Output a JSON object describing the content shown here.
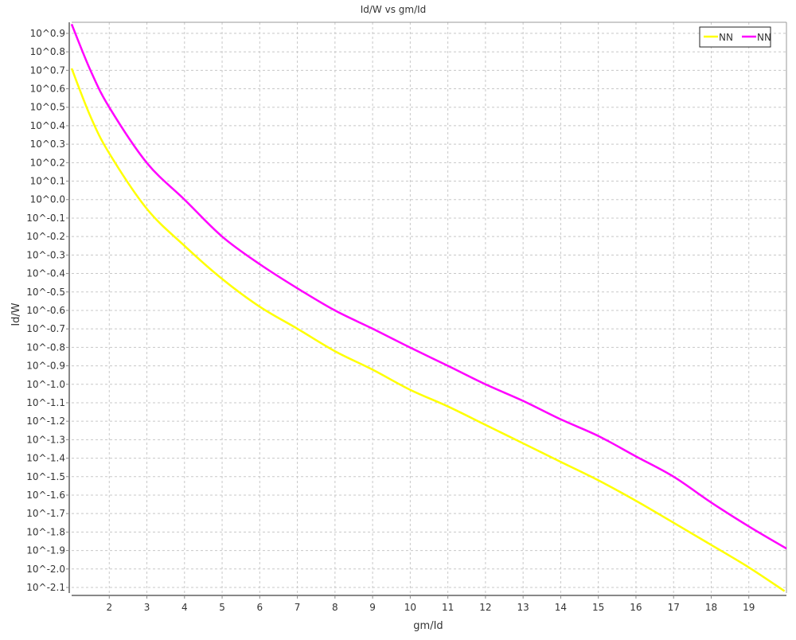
{
  "chart_data": {
    "type": "line",
    "title": "Id/W vs gm/Id",
    "xlabel": "gm/Id",
    "ylabel": "Id/W",
    "xlim": [
      1,
      20
    ],
    "ylim": [
      0.00741,
      9.12
    ],
    "yscale": "log",
    "grid": true,
    "legend_position": "top-right",
    "x_ticks": [
      2,
      3,
      4,
      5,
      6,
      7,
      8,
      9,
      10,
      11,
      12,
      13,
      14,
      15,
      16,
      17,
      18,
      19
    ],
    "y_tick_exponents": [
      0.9,
      0.8,
      0.7,
      0.6,
      0.5,
      0.4,
      0.3,
      0.2,
      0.1,
      0.0,
      -0.1,
      -0.2,
      -0.3,
      -0.4,
      -0.5,
      -0.6,
      -0.7,
      -0.8,
      -0.9,
      -1.0,
      -1.1,
      -1.2,
      -1.3,
      -1.4,
      -1.5,
      -1.6,
      -1.7,
      -1.8,
      -1.9,
      -2.0,
      -2.1
    ],
    "y_tick_labels": [
      "10^0.9",
      "10^0.8",
      "10^0.7",
      "10^0.6",
      "10^0.5",
      "10^0.4",
      "10^0.3",
      "10^0.2",
      "10^0.1",
      "10^0.0",
      "10^-0.1",
      "10^-0.2",
      "10^-0.3",
      "10^-0.4",
      "10^-0.5",
      "10^-0.6",
      "10^-0.7",
      "10^-0.8",
      "10^-0.9",
      "10^-1.0",
      "10^-1.1",
      "10^-1.2",
      "10^-1.3",
      "10^-1.4",
      "10^-1.5",
      "10^-1.6",
      "10^-1.7",
      "10^-1.8",
      "10^-1.9",
      "10^-2.0",
      "10^-2.1"
    ],
    "series": [
      {
        "name": "NN",
        "color": "#ffff00",
        "x": [
          1,
          1.5,
          2,
          3,
          4,
          5,
          6,
          7,
          8,
          9,
          10,
          11,
          12,
          13,
          14,
          15,
          16,
          17,
          18,
          19,
          19.95
        ],
        "y": [
          5.13,
          2.82,
          1.78,
          0.891,
          0.562,
          0.372,
          0.263,
          0.2,
          0.151,
          0.12,
          0.0933,
          0.0759,
          0.0603,
          0.0479,
          0.038,
          0.0302,
          0.0234,
          0.0178,
          0.0135,
          0.0102,
          0.00759
        ]
      },
      {
        "name": "NN",
        "color": "#ff00ff",
        "x": [
          1,
          1.5,
          2,
          3,
          4,
          5,
          6,
          7,
          8,
          9,
          10,
          11,
          12,
          13,
          14,
          15,
          16,
          17,
          18,
          19,
          20
        ],
        "y": [
          8.91,
          5.01,
          3.16,
          1.58,
          1.0,
          0.631,
          0.447,
          0.331,
          0.251,
          0.2,
          0.158,
          0.126,
          0.1,
          0.0813,
          0.0646,
          0.0525,
          0.0407,
          0.0316,
          0.0229,
          0.017,
          0.0129
        ]
      }
    ]
  }
}
